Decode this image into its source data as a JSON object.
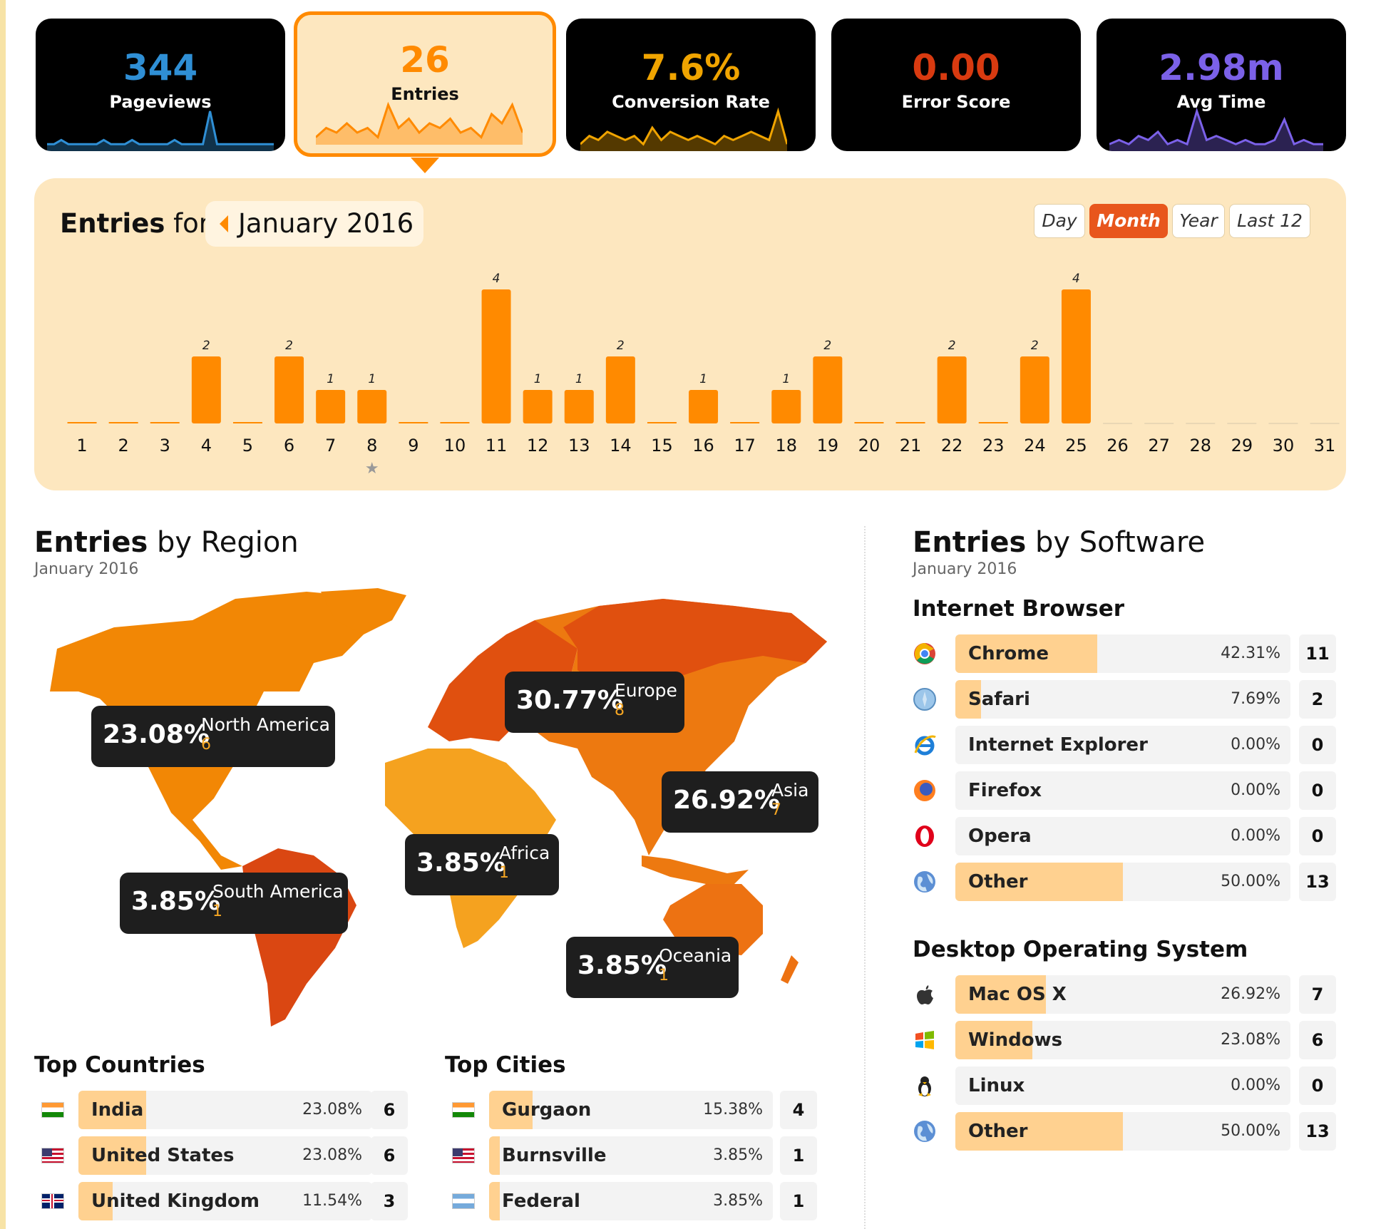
{
  "metrics": [
    {
      "value": "344",
      "label": "Pageviews",
      "color": "#2f8fd5",
      "spark": [
        1,
        1,
        2,
        1,
        1,
        1,
        1,
        1,
        2,
        1,
        1,
        1,
        2,
        1,
        1,
        1,
        1,
        1,
        2,
        1,
        1,
        1,
        1,
        9,
        1,
        1,
        1,
        1,
        1,
        1,
        1,
        1,
        1
      ]
    },
    {
      "value": "26",
      "label": "Entries",
      "color": "#ff8a00",
      "spark": [
        1,
        3,
        2,
        4,
        2,
        3,
        1,
        8,
        3,
        5,
        2,
        4,
        3,
        5,
        2,
        3,
        1,
        6,
        4,
        8,
        2
      ]
    },
    {
      "value": "7.6%",
      "label": "Conversion Rate",
      "color": "#f0a400",
      "spark": [
        1,
        3,
        2,
        4,
        3,
        2,
        3,
        1,
        5,
        2,
        4,
        3,
        2,
        3,
        2,
        1,
        3,
        2,
        3,
        4,
        3,
        2,
        9,
        1
      ]
    },
    {
      "value": "0.00",
      "label": "Error Score",
      "color": "#d83a10",
      "spark": []
    },
    {
      "value": "2.98m",
      "label": "Avg Time",
      "color": "#7b61e8",
      "spark": [
        1,
        2,
        1,
        3,
        2,
        4,
        1,
        2,
        1,
        9,
        2,
        3,
        2,
        1,
        2,
        1,
        1,
        2,
        7,
        1,
        2,
        1,
        1
      ]
    }
  ],
  "panel": {
    "entries_word": "Entries",
    "for_word": "for",
    "month": "January 2016",
    "segments": [
      "Day",
      "Month",
      "Year",
      "Last 12"
    ],
    "active_segment": "Month"
  },
  "chart_data": {
    "type": "bar",
    "categories": [
      "1",
      "2",
      "3",
      "4",
      "5",
      "6",
      "7",
      "8",
      "9",
      "10",
      "11",
      "12",
      "13",
      "14",
      "15",
      "16",
      "17",
      "18",
      "19",
      "20",
      "21",
      "22",
      "23",
      "24",
      "25",
      "26",
      "27",
      "28",
      "29",
      "30",
      "31"
    ],
    "values": [
      0,
      0,
      0,
      2,
      0,
      2,
      1,
      1,
      0,
      0,
      4,
      1,
      1,
      2,
      0,
      1,
      0,
      1,
      2,
      0,
      0,
      2,
      0,
      2,
      4,
      null,
      null,
      null,
      null,
      null,
      null
    ],
    "marked_day": "8",
    "ylim": [
      0,
      4
    ]
  },
  "region": {
    "title_bold": "Entries",
    "title_rest": "by Region",
    "subtitle": "January 2016",
    "bubbles": [
      {
        "pct": "23.08%",
        "name": "North America",
        "count": "6"
      },
      {
        "pct": "30.77%",
        "name": "Europe",
        "count": "8"
      },
      {
        "pct": "26.92%",
        "name": "Asia",
        "count": "7"
      },
      {
        "pct": "3.85%",
        "name": "Africa",
        "count": "1"
      },
      {
        "pct": "3.85%",
        "name": "South America",
        "count": "1"
      },
      {
        "pct": "3.85%",
        "name": "Oceania",
        "count": "1"
      }
    ],
    "colors": {
      "north_america": "#f28705",
      "europe": "#e0500f",
      "asia": "#ed7910",
      "africa": "#f5a21f",
      "south_america": "#da4712",
      "oceania": "#ed7212"
    }
  },
  "countries": {
    "title": "Top Countries",
    "rows": [
      {
        "name": "India",
        "pct": "23.08%",
        "fill": 0.2308,
        "count": "6",
        "flag": "india-flag"
      },
      {
        "name": "United States",
        "pct": "23.08%",
        "fill": 0.2308,
        "count": "6",
        "flag": "us-flag"
      },
      {
        "name": "United Kingdom",
        "pct": "11.54%",
        "fill": 0.1154,
        "count": "3",
        "flag": "uk-flag"
      }
    ]
  },
  "cities": {
    "title": "Top Cities",
    "rows": [
      {
        "name": "Gurgaon",
        "pct": "15.38%",
        "fill": 0.1538,
        "count": "4",
        "flag": "india-flag"
      },
      {
        "name": "Burnsville",
        "pct": "3.85%",
        "fill": 0.0385,
        "count": "1",
        "flag": "us-flag"
      },
      {
        "name": "Federal",
        "pct": "3.85%",
        "fill": 0.0385,
        "count": "1",
        "flag": "argentina-flag"
      }
    ]
  },
  "software": {
    "title_bold": "Entries",
    "title_rest": "by Software",
    "subtitle": "January 2016",
    "browser_title": "Internet Browser",
    "browsers": [
      {
        "name": "Chrome",
        "pct": "42.31%",
        "fill": 0.4231,
        "count": "11",
        "icon": "chrome-icon"
      },
      {
        "name": "Safari",
        "pct": "7.69%",
        "fill": 0.0769,
        "count": "2",
        "icon": "safari-icon"
      },
      {
        "name": "Internet Explorer",
        "pct": "0.00%",
        "fill": 0,
        "count": "0",
        "icon": "internet-explorer-icon"
      },
      {
        "name": "Firefox",
        "pct": "0.00%",
        "fill": 0,
        "count": "0",
        "icon": "firefox-icon"
      },
      {
        "name": "Opera",
        "pct": "0.00%",
        "fill": 0,
        "count": "0",
        "icon": "opera-icon"
      },
      {
        "name": "Other",
        "pct": "50.00%",
        "fill": 0.5,
        "count": "13",
        "icon": "globe-icon"
      }
    ],
    "os_title": "Desktop Operating System",
    "os": [
      {
        "name": "Mac OS X",
        "pct": "26.92%",
        "fill": 0.2692,
        "count": "7",
        "icon": "apple-icon"
      },
      {
        "name": "Windows",
        "pct": "23.08%",
        "fill": 0.2308,
        "count": "6",
        "icon": "windows-icon"
      },
      {
        "name": "Linux",
        "pct": "0.00%",
        "fill": 0,
        "count": "0",
        "icon": "linux-icon"
      },
      {
        "name": "Other",
        "pct": "50.00%",
        "fill": 0.5,
        "count": "13",
        "icon": "globe-icon"
      }
    ]
  }
}
